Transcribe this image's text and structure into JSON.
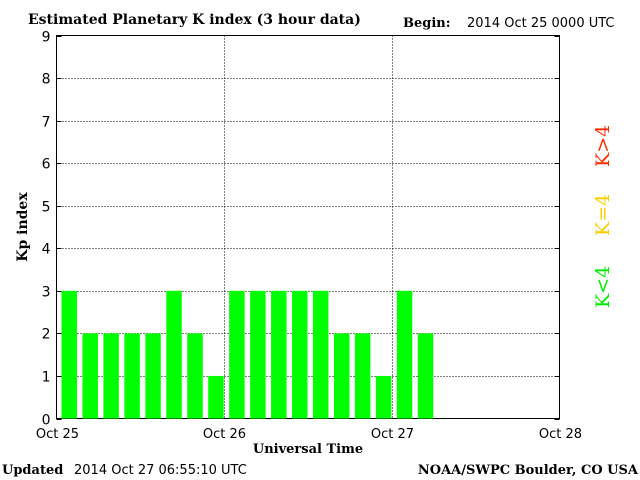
{
  "header": {
    "title": "Estimated Planetary K index (3 hour data)",
    "begin_label": "Begin:",
    "begin_value": "2014 Oct 25 0000 UTC"
  },
  "footer": {
    "updated_label": "Updated",
    "updated_value": "2014 Oct 27 06:55:10 UTC",
    "source": "NOAA/SWPC Boulder, CO USA"
  },
  "legend": {
    "items": [
      {
        "label": "K<4",
        "color": "#00ee00"
      },
      {
        "label": "K=4",
        "color": "#ffcc00"
      },
      {
        "label": "K>4",
        "color": "#ff2a00"
      }
    ]
  },
  "chart_data": {
    "type": "bar",
    "title": "Estimated Planetary K index (3 hour data)",
    "xlabel": "Universal Time",
    "ylabel": "Kp index",
    "ylim": [
      0,
      9
    ],
    "yticks": [
      "0",
      "1",
      "2",
      "3",
      "4",
      "5",
      "6",
      "7",
      "8",
      "9"
    ],
    "xtick_labels": [
      "Oct 25",
      "Oct 26",
      "Oct 27",
      "Oct 28"
    ],
    "grid": true,
    "bar_color": "#00ff00",
    "categories": [
      "Oct 25 00",
      "Oct 25 03",
      "Oct 25 06",
      "Oct 25 09",
      "Oct 25 12",
      "Oct 25 15",
      "Oct 25 18",
      "Oct 25 21",
      "Oct 26 00",
      "Oct 26 03",
      "Oct 26 06",
      "Oct 26 09",
      "Oct 26 12",
      "Oct 26 15",
      "Oct 26 18",
      "Oct 26 21",
      "Oct 27 00",
      "Oct 27 03"
    ],
    "values": [
      3,
      2,
      2,
      2,
      2,
      3,
      2,
      1,
      3,
      3,
      3,
      3,
      3,
      2,
      2,
      1,
      3,
      2
    ]
  }
}
